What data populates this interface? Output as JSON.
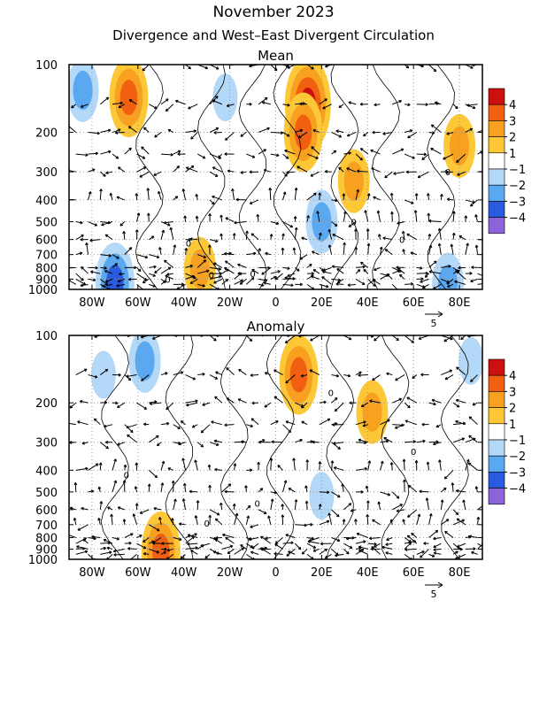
{
  "figure": {
    "title": "November 2023",
    "subtitle": "Divergence and West–East Divergent Circulation"
  },
  "colors": {
    "pos4": "#cc1010",
    "pos3": "#f06010",
    "pos2": "#f8a020",
    "pos1": "#fcc838",
    "neg1": "#b4d8f8",
    "neg2": "#5aa8f0",
    "neg3": "#2a5ae0",
    "neg4": "#8a64d8",
    "grid": "#999999",
    "arrow": "#000000"
  },
  "chart_data": [
    {
      "type": "heatmap",
      "title": "Mean",
      "x_ticks": [
        "80W",
        "60W",
        "40W",
        "20W",
        "0",
        "20E",
        "40E",
        "60E",
        "80E"
      ],
      "x_tick_values": [
        -80,
        -60,
        -40,
        -20,
        0,
        20,
        40,
        60,
        80
      ],
      "xlim": [
        -90,
        90
      ],
      "y_ticks": [
        "100",
        "200",
        "300",
        "400",
        "500",
        "600",
        "700",
        "800",
        "900",
        "1000"
      ],
      "y_tick_values": [
        100,
        200,
        300,
        400,
        500,
        600,
        700,
        800,
        900,
        1000
      ],
      "ylim": [
        1000,
        100
      ],
      "y_scale": "log",
      "grid": true,
      "colorbar": {
        "labels": [
          "4",
          "3",
          "2",
          "1",
          "−1",
          "−2",
          "−3",
          "−4"
        ],
        "colors": [
          "#cc1010",
          "#f06010",
          "#f8a020",
          "#fcc838",
          "#ffffff",
          "#b4d8f8",
          "#5aa8f0",
          "#2a5ae0",
          "#8a64d8"
        ]
      },
      "reference_vector": "5",
      "contour_labels": [
        "0",
        "0",
        "0",
        "0",
        "0",
        "0",
        "0"
      ],
      "divergence_blobs": [
        {
          "lon": -64,
          "p": 140,
          "level": 3
        },
        {
          "lon": 14,
          "p": 150,
          "level": 4
        },
        {
          "lon": 12,
          "p": 200,
          "level": 3
        },
        {
          "lon": 34,
          "p": 330,
          "level": 2
        },
        {
          "lon": 80,
          "p": 230,
          "level": 2
        },
        {
          "lon": -33,
          "p": 810,
          "level": 2
        },
        {
          "lon": -84,
          "p": 130,
          "level": -2
        },
        {
          "lon": -22,
          "p": 140,
          "level": -1
        },
        {
          "lon": 20,
          "p": 500,
          "level": -2
        },
        {
          "lon": -70,
          "p": 930,
          "level": -3
        },
        {
          "lon": 75,
          "p": 950,
          "level": -2
        }
      ]
    },
    {
      "type": "heatmap",
      "title": "Anomaly",
      "x_ticks": [
        "80W",
        "60W",
        "40W",
        "20W",
        "0",
        "20E",
        "40E",
        "60E",
        "80E"
      ],
      "x_tick_values": [
        -80,
        -60,
        -40,
        -20,
        0,
        20,
        40,
        60,
        80
      ],
      "xlim": [
        -90,
        90
      ],
      "y_ticks": [
        "100",
        "200",
        "300",
        "400",
        "500",
        "600",
        "700",
        "800",
        "900",
        "1000"
      ],
      "y_tick_values": [
        100,
        200,
        300,
        400,
        500,
        600,
        700,
        800,
        900,
        1000
      ],
      "ylim": [
        1000,
        100
      ],
      "y_scale": "log",
      "grid": true,
      "colorbar": {
        "labels": [
          "4",
          "3",
          "2",
          "1",
          "−1",
          "−2",
          "−3",
          "−4"
        ],
        "colors": [
          "#cc1010",
          "#f06010",
          "#f8a020",
          "#fcc838",
          "#ffffff",
          "#b4d8f8",
          "#5aa8f0",
          "#2a5ae0",
          "#8a64d8"
        ]
      },
      "reference_vector": "5",
      "contour_labels": [
        "0",
        "0",
        "0",
        "0",
        "0"
      ],
      "divergence_blobs": [
        {
          "lon": 10,
          "p": 150,
          "level": 3
        },
        {
          "lon": 42,
          "p": 220,
          "level": 2
        },
        {
          "lon": -50,
          "p": 920,
          "level": 3
        },
        {
          "lon": -75,
          "p": 150,
          "level": -1
        },
        {
          "lon": -57,
          "p": 130,
          "level": -2
        },
        {
          "lon": 20,
          "p": 520,
          "level": -1
        },
        {
          "lon": 85,
          "p": 130,
          "level": -1
        }
      ]
    }
  ]
}
